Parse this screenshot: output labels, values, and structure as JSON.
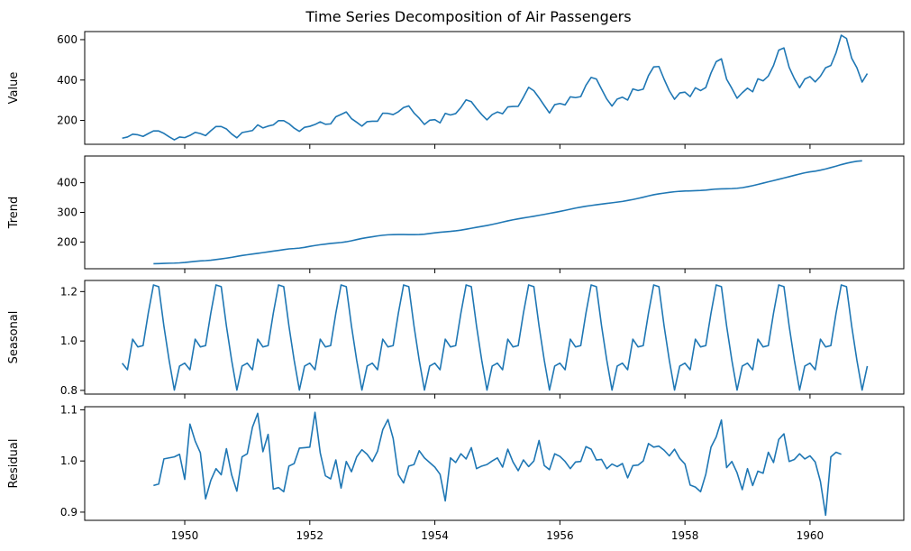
{
  "chart_data": {
    "type": "line",
    "title": "Time Series Decomposition of Air Passengers",
    "color": "#1f77b4",
    "x_start": 1949.0,
    "x_step": 0.08333333,
    "xlim": [
      1948.4,
      1961.5
    ],
    "xticks": [
      1950,
      1952,
      1954,
      1956,
      1958,
      1960
    ],
    "xtick_labels": [
      "1950",
      "1952",
      "1954",
      "1956",
      "1958",
      "1960"
    ],
    "panels": [
      {
        "ylabel": "Value",
        "ylim": [
          82,
          640
        ],
        "yticks": [
          200,
          400,
          600
        ],
        "ytick_labels": [
          "200",
          "400",
          "600"
        ],
        "start_index": 0,
        "values": [
          112,
          118,
          132,
          129,
          121,
          135,
          148,
          148,
          136,
          119,
          104,
          118,
          115,
          126,
          141,
          135,
          125,
          149,
          170,
          170,
          158,
          133,
          114,
          140,
          145,
          150,
          178,
          163,
          172,
          178,
          199,
          199,
          184,
          162,
          146,
          166,
          171,
          180,
          193,
          181,
          183,
          218,
          230,
          242,
          209,
          191,
          172,
          194,
          196,
          196,
          236,
          235,
          229,
          243,
          264,
          272,
          237,
          211,
          180,
          201,
          204,
          188,
          235,
          227,
          234,
          264,
          302,
          293,
          259,
          229,
          203,
          229,
          242,
          233,
          267,
          269,
          270,
          315,
          364,
          347,
          312,
          274,
          237,
          278,
          284,
          277,
          317,
          313,
          318,
          374,
          413,
          405,
          355,
          306,
          271,
          306,
          315,
          301,
          356,
          348,
          355,
          422,
          465,
          467,
          404,
          347,
          305,
          336,
          340,
          318,
          362,
          348,
          363,
          435,
          491,
          505,
          404,
          359,
          310,
          337,
          360,
          342,
          406,
          396,
          420,
          472,
          548,
          559,
          463,
          407,
          362,
          405,
          417,
          391,
          419,
          461,
          472,
          535,
          622,
          606,
          508,
          461,
          390,
          432
        ]
      },
      {
        "ylabel": "Trend",
        "ylim": [
          110,
          490
        ],
        "yticks": [
          200,
          300,
          400
        ],
        "ytick_labels": [
          "200",
          "300",
          "400"
        ],
        "start_index": 6,
        "values": [
          126.8,
          127.2,
          127.9,
          128.6,
          129.0,
          129.8,
          131.2,
          133.1,
          134.9,
          136.4,
          137.4,
          138.8,
          140.9,
          143.2,
          145.7,
          148.4,
          151.5,
          154.7,
          157.1,
          159.5,
          161.8,
          164.4,
          166.9,
          169.4,
          171.8,
          174.5,
          176.9,
          178.0,
          179.5,
          182.0,
          185.4,
          188.3,
          190.9,
          193.1,
          195.2,
          196.9,
          198.6,
          200.9,
          204.3,
          208.2,
          212.0,
          215.0,
          217.8,
          220.6,
          222.9,
          224.4,
          225.1,
          225.3,
          225.2,
          225.0,
          224.9,
          225.2,
          226.5,
          228.7,
          231.0,
          233.0,
          234.4,
          235.9,
          237.8,
          240.2,
          243.2,
          246.4,
          249.6,
          252.6,
          255.7,
          259.3,
          263.2,
          267.3,
          271.4,
          274.9,
          278.1,
          281.1,
          284.0,
          287.0,
          290.1,
          293.2,
          296.5,
          299.8,
          303.3,
          306.9,
          310.6,
          314.4,
          317.6,
          320.7,
          323.2,
          325.6,
          328.0,
          330.3,
          332.3,
          334.6,
          336.9,
          340.1,
          343.3,
          347.1,
          351.2,
          355.4,
          359.4,
          362.5,
          365.0,
          367.5,
          369.5,
          371.0,
          371.9,
          372.5,
          373.1,
          373.8,
          375.0,
          377.0,
          378.6,
          379.2,
          379.6,
          380.2,
          381.3,
          383.2,
          386.4,
          390.0,
          394.3,
          398.6,
          402.9,
          407.2,
          411.5,
          416.0,
          420.3,
          424.8,
          429.2,
          433.3,
          436.6,
          439.0,
          442.3,
          446.3,
          451.0,
          455.8,
          461.0,
          465.5,
          469.2,
          472.3,
          473.8
        ]
      },
      {
        "ylabel": "Seasonal",
        "ylim": [
          0.785,
          1.245
        ],
        "yticks": [
          0.8,
          1.0,
          1.2
        ],
        "ytick_labels": [
          "0.8",
          "1.0",
          "1.2"
        ],
        "start_index": 0,
        "pattern": [
          0.9102,
          0.8836,
          1.0073,
          0.9759,
          0.9813,
          1.1127,
          1.2268,
          1.2199,
          1.0604,
          0.9218,
          0.8013,
          0.8984
        ],
        "repeat": 12
      },
      {
        "ylabel": "Residual",
        "ylim": [
          0.884,
          1.106
        ],
        "yticks": [
          0.9,
          1.0,
          1.1
        ],
        "ytick_labels": [
          "0.9",
          "1.0",
          "1.1"
        ],
        "start_index": 6,
        "values": [
          0.952,
          0.955,
          1.004,
          1.006,
          1.008,
          1.013,
          0.964,
          1.072,
          1.039,
          1.016,
          0.926,
          0.962,
          0.985,
          0.973,
          1.024,
          0.973,
          0.941,
          1.008,
          1.014,
          1.066,
          1.093,
          1.018,
          1.052,
          0.945,
          0.948,
          0.94,
          0.99,
          0.995,
          1.025,
          1.026,
          1.027,
          1.095,
          1.016,
          0.971,
          0.965,
          1.002,
          0.947,
          0.999,
          0.979,
          1.008,
          1.022,
          1.013,
          0.999,
          1.019,
          1.061,
          1.081,
          1.044,
          0.973,
          0.957,
          0.99,
          0.993,
          1.02,
          1.006,
          0.997,
          0.988,
          0.974,
          0.922,
          1.006,
          0.997,
          1.014,
          1.004,
          1.026,
          0.985,
          0.99,
          0.993,
          1.0,
          1.006,
          0.988,
          1.023,
          0.998,
          0.981,
          1.002,
          0.989,
          1.0,
          1.04,
          0.991,
          0.983,
          1.014,
          1.009,
          0.999,
          0.985,
          0.998,
          0.999,
          1.028,
          1.023,
          1.002,
          1.003,
          0.985,
          0.994,
          0.989,
          0.995,
          0.967,
          0.991,
          0.992,
          1.0,
          1.034,
          1.027,
          1.029,
          1.021,
          1.01,
          1.023,
          1.005,
          0.994,
          0.953,
          0.949,
          0.94,
          0.974,
          1.027,
          1.047,
          1.08,
          0.987,
          0.999,
          0.977,
          0.944,
          0.985,
          0.952,
          0.98,
          0.976,
          1.017,
          0.997,
          1.042,
          1.053,
          0.999,
          1.003,
          1.014,
          1.004,
          1.01,
          0.998,
          0.96,
          0.894,
          1.008,
          1.017,
          1.013
        ]
      }
    ]
  }
}
